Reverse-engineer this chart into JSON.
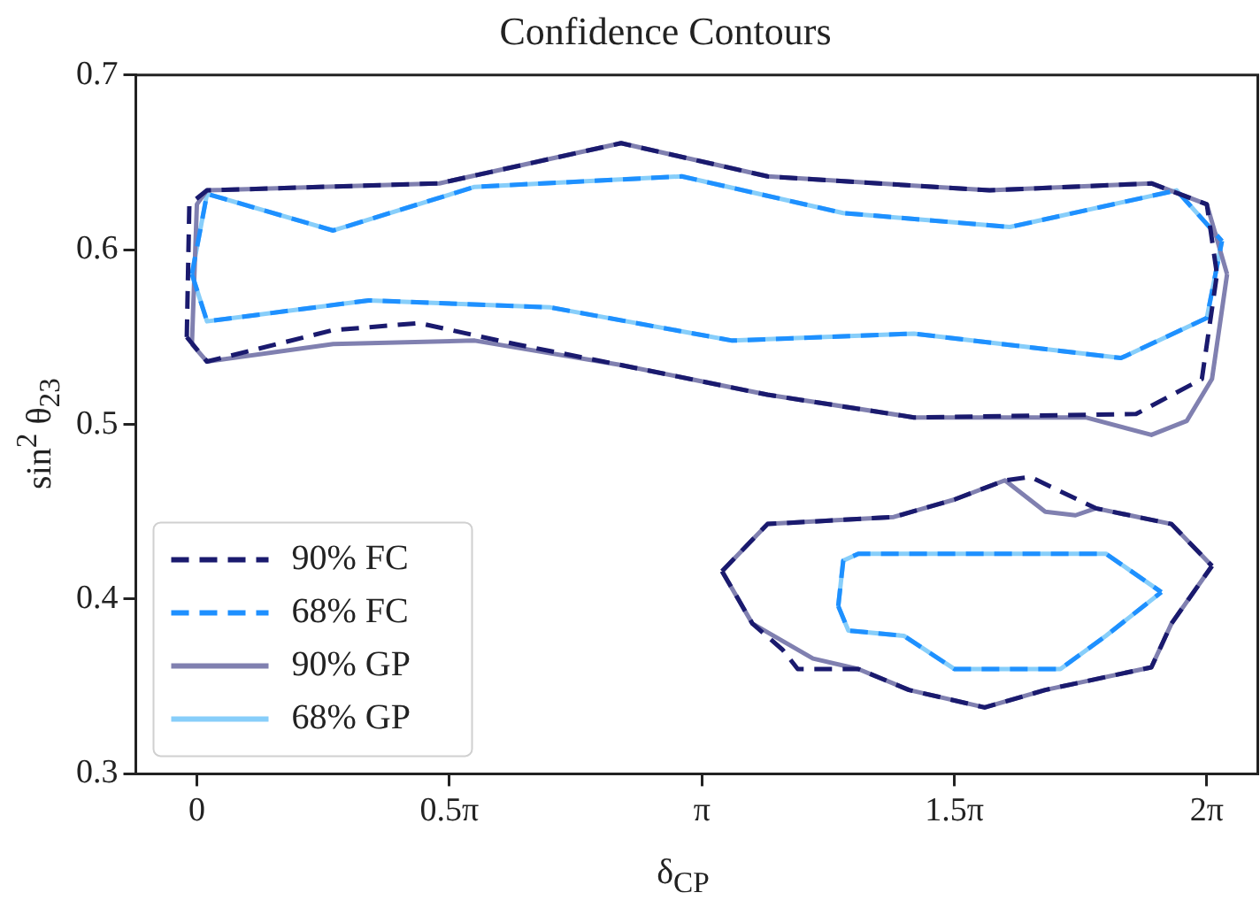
{
  "chart_data": {
    "type": "line",
    "title": "Confidence Contours",
    "xlabel": "δ$_{CP}$",
    "ylabel": "sin$^{2}$ θ$_{23}$",
    "xlim": [
      -0.38,
      6.6
    ],
    "ylim": [
      0.3,
      0.7
    ],
    "xticks": [
      0,
      {
        "value": 1.5708,
        "label": "0.5π"
      },
      {
        "value": 3.1416,
        "label": "π"
      },
      {
        "value": 4.7124,
        "label": "1.5π"
      },
      {
        "value": 6.2832,
        "label": "2π"
      }
    ],
    "yticks": [
      0.3,
      0.4,
      0.5,
      0.6,
      0.7
    ],
    "grid": false,
    "legend": "bottom left",
    "marker": "none",
    "series": [
      {
        "name": "90% FC",
        "color": "#1a1a6e",
        "type": "line",
        "line_style": "dashed",
        "x": [
          -0.063,
          -0.047,
          0.063,
          1.508,
          2.639,
          3.55,
          4.932,
          5.938,
          6.283,
          6.346,
          null,
          -0.063,
          0.063,
          0.848,
          1.382,
          1.979,
          2.639,
          3.55,
          4.461,
          5.843,
          6.252,
          6.346
        ],
        "values": [
          0.55,
          0.626,
          0.634,
          0.638,
          0.661,
          0.642,
          0.634,
          0.638,
          0.626,
          0.586,
          null,
          0.55,
          0.536,
          0.554,
          0.558,
          0.546,
          0.534,
          0.517,
          0.504,
          0.506,
          0.526,
          0.586
        ]
      },
      {
        "name": "68% FC",
        "color": "#1e90ff",
        "type": "line",
        "line_style": "dashed",
        "x": [
          -0.031,
          0.063,
          0.848,
          1.728,
          3.016,
          4.021,
          5.058,
          6.095,
          6.377,
          null,
          -0.031,
          0.063,
          1.068,
          2.199,
          3.33,
          4.461,
          5.749,
          6.283,
          6.377
        ],
        "values": [
          0.586,
          0.632,
          0.611,
          0.636,
          0.642,
          0.621,
          0.613,
          0.634,
          0.605,
          null,
          0.586,
          0.559,
          0.571,
          0.567,
          0.548,
          0.552,
          0.538,
          0.561,
          0.605
        ]
      },
      {
        "name": "90% GP",
        "color": "#8080b0",
        "type": "line",
        "line_style": "solid",
        "x": [
          -0.031,
          0,
          0.063,
          1.508,
          2.639,
          3.55,
          4.932,
          5.938,
          6.283,
          6.409,
          null,
          -0.031,
          0.063,
          0.848,
          1.728,
          2.639,
          3.55,
          4.461,
          5.529,
          5.938,
          6.158,
          6.315,
          6.409
        ],
        "values": [
          0.546,
          0.626,
          0.634,
          0.638,
          0.661,
          0.642,
          0.634,
          0.638,
          0.626,
          0.586,
          null,
          0.546,
          0.536,
          0.546,
          0.548,
          0.534,
          0.517,
          0.504,
          0.504,
          0.494,
          0.502,
          0.526,
          0.586
        ]
      },
      {
        "name": "68% GP",
        "color": "#87cefa",
        "type": "line",
        "line_style": "solid",
        "x": [
          -0.031,
          0.063,
          0.848,
          1.728,
          3.016,
          4.021,
          5.058,
          6.095,
          6.377,
          null,
          -0.031,
          0.063,
          1.068,
          2.199,
          3.33,
          4.461,
          5.749,
          6.283,
          6.377
        ],
        "values": [
          0.586,
          0.632,
          0.611,
          0.636,
          0.642,
          0.621,
          0.613,
          0.634,
          0.605,
          null,
          0.586,
          0.559,
          0.571,
          0.567,
          0.548,
          0.552,
          0.538,
          0.561,
          0.605
        ]
      },
      {
        "color": "#1a1a6e",
        "type": "line",
        "line_style": "dashed",
        "x": [
          3.267,
          3.55,
          4.335,
          4.712,
          5.027,
          5.184,
          5.592,
          6.063,
          6.315,
          null,
          3.267,
          3.456,
          3.644,
          3.738,
          4.115,
          4.43,
          4.901,
          5.278,
          5.938,
          6.063,
          6.315
        ],
        "values": [
          0.416,
          0.443,
          0.447,
          0.457,
          0.468,
          0.47,
          0.452,
          0.443,
          0.419,
          null,
          0.416,
          0.386,
          0.371,
          0.36,
          0.36,
          0.348,
          0.338,
          0.348,
          0.361,
          0.386,
          0.419
        ]
      },
      {
        "color": "#1e90ff",
        "type": "line",
        "line_style": "dashed",
        "x": [
          3.99,
          4.021,
          4.115,
          5.655,
          6.0,
          null,
          3.99,
          4.053,
          4.398,
          4.712,
          5.372,
          5.655,
          6.0
        ],
        "values": [
          0.396,
          0.422,
          0.426,
          0.426,
          0.404,
          null,
          0.396,
          0.382,
          0.379,
          0.36,
          0.36,
          0.379,
          0.404
        ]
      },
      {
        "color": "#8080b0",
        "type": "line",
        "line_style": "solid",
        "x": [
          3.267,
          3.55,
          4.335,
          4.712,
          5.027,
          5.278,
          5.466,
          5.592,
          6.063,
          6.315,
          null,
          3.267,
          3.456,
          3.833,
          4.115,
          4.43,
          4.901,
          5.278,
          5.938,
          6.063,
          6.315
        ],
        "values": [
          0.416,
          0.443,
          0.447,
          0.457,
          0.468,
          0.45,
          0.448,
          0.452,
          0.443,
          0.419,
          null,
          0.416,
          0.386,
          0.366,
          0.36,
          0.348,
          0.338,
          0.348,
          0.361,
          0.386,
          0.419
        ]
      },
      {
        "color": "#87cefa",
        "type": "line",
        "line_style": "solid",
        "x": [
          3.99,
          4.021,
          4.115,
          5.655,
          6.0,
          null,
          3.99,
          4.053,
          4.398,
          4.712,
          5.372,
          5.655,
          6.0
        ],
        "values": [
          0.396,
          0.422,
          0.426,
          0.426,
          0.404,
          null,
          0.396,
          0.382,
          0.379,
          0.36,
          0.36,
          0.379,
          0.404
        ]
      }
    ]
  }
}
